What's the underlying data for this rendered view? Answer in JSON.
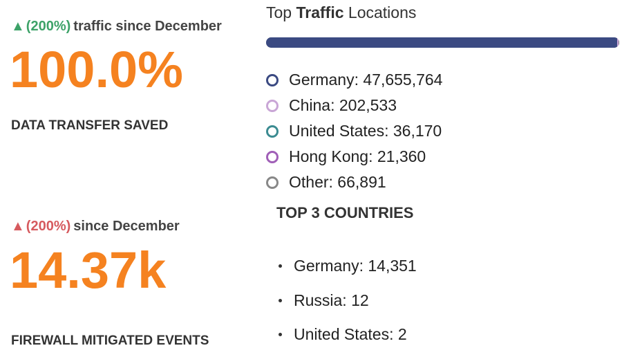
{
  "stats": [
    {
      "delta_symbol": "▲",
      "delta_percent": "(200%)",
      "delta_text": "traffic since December",
      "trend": "up",
      "value": "100.0%",
      "label": "DATA TRANSFER SAVED"
    },
    {
      "delta_symbol": "▲",
      "delta_percent": "(200%)",
      "delta_text": "since December",
      "trend": "up-negative",
      "value": "14.37k",
      "label": "FIREWALL MITIGATED EVENTS"
    }
  ],
  "locations": {
    "title_prefix": "Top",
    "title_bold": "Traffic",
    "title_suffix": "Locations",
    "items": [
      {
        "text": "Germany: 47,655,764",
        "count": 47655764,
        "color": "#3b4a82"
      },
      {
        "text": "China: 202,533",
        "count": 202533,
        "color": "#c9a6d6"
      },
      {
        "text": "United States: 36,170",
        "count": 36170,
        "color": "#3b8b91"
      },
      {
        "text": "Hong Kong: 21,360",
        "count": 21360,
        "color": "#a05fb7"
      },
      {
        "text": "Other: 66,891",
        "count": 66891,
        "color": "#888888"
      }
    ]
  },
  "top_countries": {
    "title": "TOP 3 COUNTRIES",
    "items": [
      {
        "text": "Germany: 14,351"
      },
      {
        "text": "Russia: 12"
      },
      {
        "text": "United States: 2"
      }
    ]
  },
  "colors": {
    "big_number": "#f58220",
    "trend_up_good": "#3da268",
    "trend_up_bad": "#d65a5e"
  }
}
